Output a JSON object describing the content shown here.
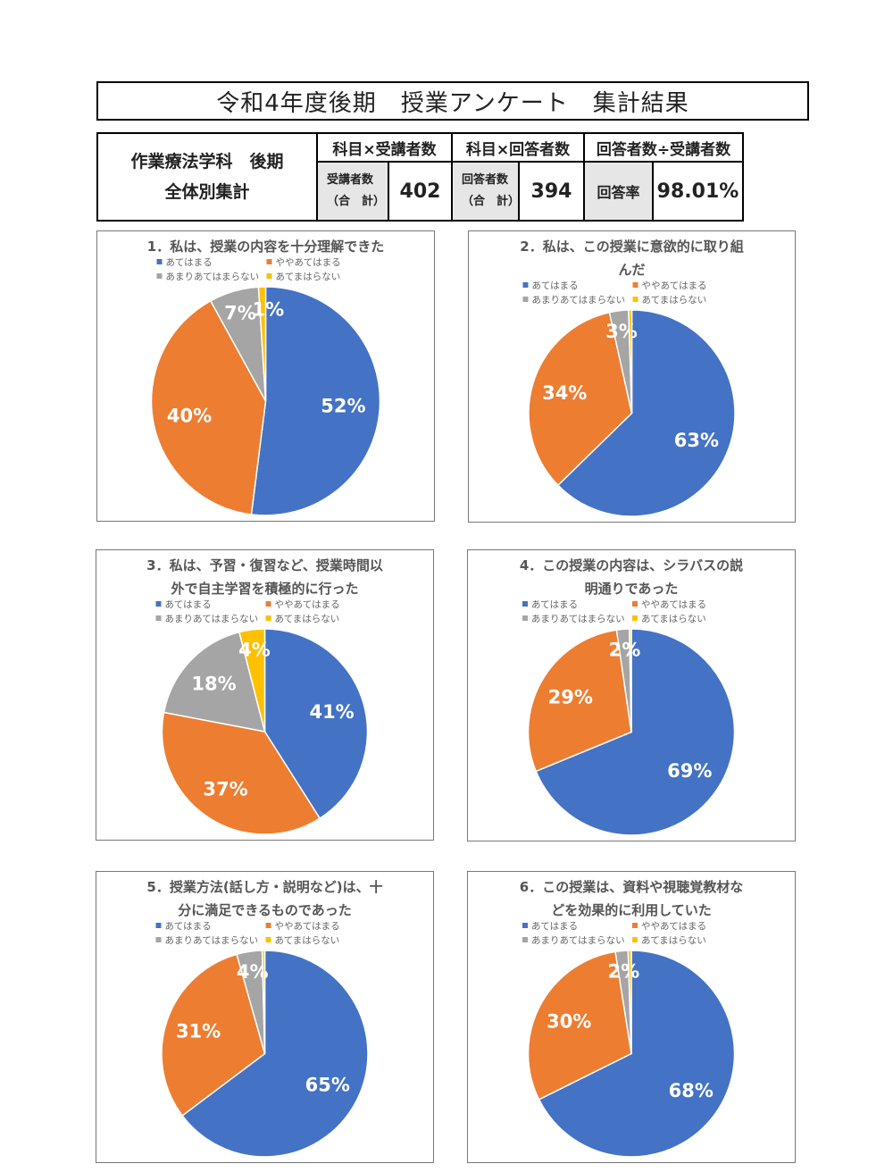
{
  "header": {
    "title": "令和4年度後期　授業アンケート　集計結果"
  },
  "summary": {
    "dept_line1": "作業療法学科　後期",
    "dept_line2": "全体別集計",
    "col1_header": "科目×受講者数",
    "col2_header": "科目×回答者数",
    "col3_header": "回答者数÷受講者数",
    "students_label_1": "受講者数",
    "students_label_2": "（合　計）",
    "students_value": "402",
    "respondents_label_1": "回答者数",
    "respondents_label_2": "（合　計）",
    "respondents_value": "394",
    "rate_label": "回答率",
    "rate_value": "98.01%"
  },
  "colors": {
    "atehamaru": "#4472C4",
    "yaya": "#ED7D31",
    "amari": "#A5A5A5",
    "atehamaranai": "#FFC000"
  },
  "chart_data": [
    {
      "type": "pie",
      "title": [
        "1．私は、授業の内容を十分理解できた"
      ],
      "categories": [
        "あてはまる",
        "ややあてはまる",
        "あまりあてはまらない",
        "あてまはらない"
      ],
      "values": [
        52,
        40,
        7,
        1
      ],
      "labels": [
        "52%",
        "40%",
        "7%",
        "1%"
      ]
    },
    {
      "type": "pie",
      "title": [
        "2．私は、この授業に意欲的に取り組",
        "んだ"
      ],
      "categories": [
        "あてはまる",
        "ややあてはまる",
        "あまりあてはまらない",
        "あてまはらない"
      ],
      "values": [
        63,
        34,
        3,
        0.5
      ],
      "labels": [
        "63%",
        "34%",
        "3%",
        ""
      ]
    },
    {
      "type": "pie",
      "title": [
        "3．私は、予習・復習など、授業時間以",
        "外で自主学習を積極的に行った"
      ],
      "categories": [
        "あてはまる",
        "ややあてはまる",
        "あまりあてはまらない",
        "あてまはらない"
      ],
      "values": [
        41,
        37,
        18,
        4
      ],
      "labels": [
        "41%",
        "37%",
        "18%",
        "4%"
      ]
    },
    {
      "type": "pie",
      "title": [
        "4．この授業の内容は、シラバスの説",
        "明通りであった"
      ],
      "categories": [
        "あてはまる",
        "ややあてはまる",
        "あまりあてはまらない",
        "あてまはらない"
      ],
      "values": [
        69,
        29,
        2,
        0.3
      ],
      "labels": [
        "69%",
        "29%",
        "2%",
        ""
      ]
    },
    {
      "type": "pie",
      "title": [
        "5．授業方法(話し方・説明など)は、十",
        "分に満足できるものであった"
      ],
      "categories": [
        "あてはまる",
        "ややあてはまる",
        "あまりあてはまらない",
        "あてまはらない"
      ],
      "values": [
        65,
        31,
        4,
        0.4
      ],
      "labels": [
        "65%",
        "31%",
        "4%",
        ""
      ]
    },
    {
      "type": "pie",
      "title": [
        "6．この授業は、資料や視聴覚教材な",
        "どを効果的に利用していた"
      ],
      "categories": [
        "あてはまる",
        "ややあてはまる",
        "あまりあてはまらない",
        "あてまはらない"
      ],
      "values": [
        68,
        30,
        2,
        0.5
      ],
      "labels": [
        "68%",
        "30%",
        "2%",
        ""
      ]
    }
  ]
}
